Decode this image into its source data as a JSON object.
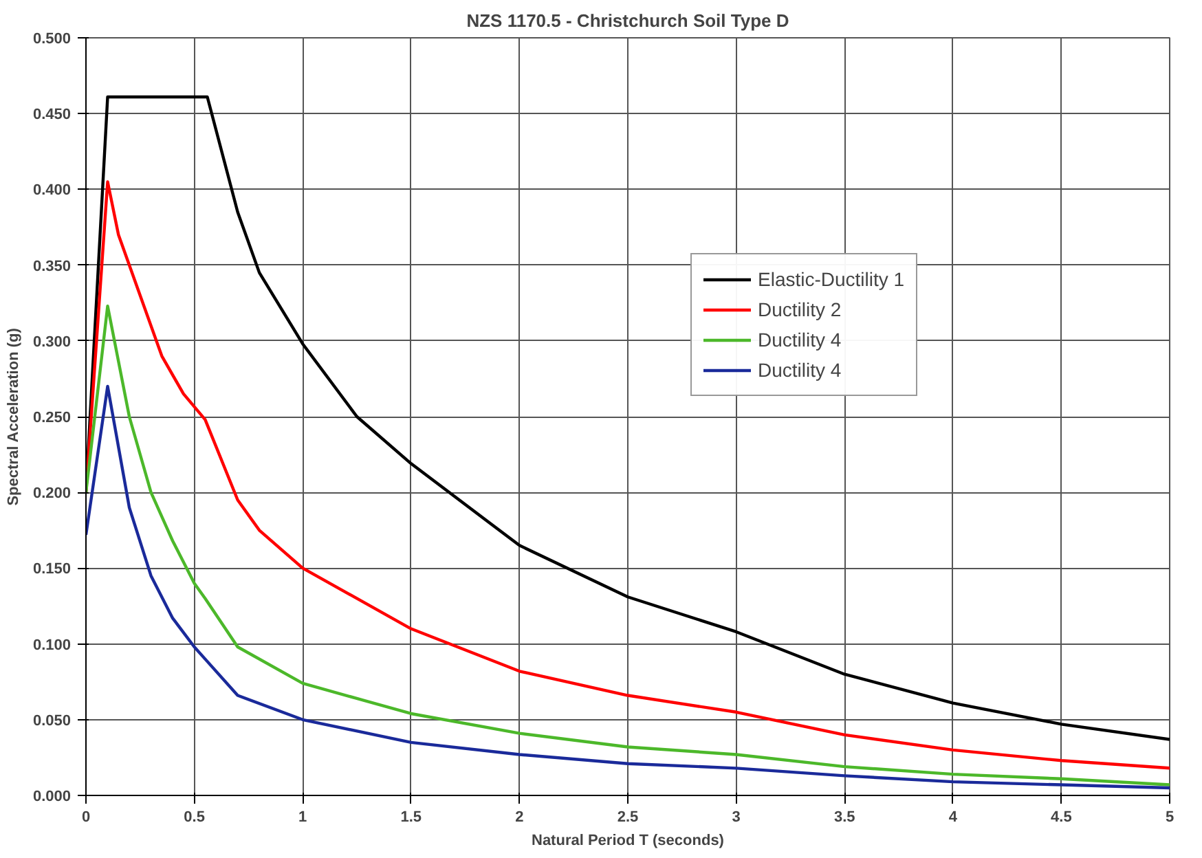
{
  "chart_data": {
    "type": "line",
    "title": "NZS 1170.5 - Christchurch Soil Type D",
    "xlabel": "Natural Period T (seconds)",
    "ylabel": "Spectral Acceleration (g)",
    "xlim": [
      0,
      5
    ],
    "ylim": [
      0,
      0.5
    ],
    "xticks": [
      0,
      0.5,
      1,
      1.5,
      2,
      2.5,
      3,
      3.5,
      4,
      4.5,
      5
    ],
    "yticks": [
      {
        "value": 0,
        "label": "0.000"
      },
      {
        "value": 0.05,
        "label": "0.050"
      },
      {
        "value": 0.1,
        "label": "0.100"
      },
      {
        "value": 0.15,
        "label": "0.150"
      },
      {
        "value": 0.2,
        "label": "0.200"
      },
      {
        "value": 0.25,
        "label": "0.250"
      },
      {
        "value": 0.3,
        "label": "0.300"
      },
      {
        "value": 0.35,
        "label": "0.350"
      },
      {
        "value": 0.4,
        "label": "0.400"
      },
      {
        "value": 0.45,
        "label": "0.450"
      },
      {
        "value": 0.5,
        "label": "0.500"
      }
    ],
    "grid": true,
    "legend": "top right",
    "marker": "none",
    "line_style": "solid",
    "series": [
      {
        "name": "Elastic-Ductility 1",
        "color": "#000000",
        "x": [
          0,
          0.1,
          0.56,
          0.7,
          0.8,
          1,
          1.25,
          1.5,
          2,
          2.5,
          3,
          3.5,
          4,
          4.5,
          5
        ],
        "values": [
          0.2,
          0.461,
          0.461,
          0.385,
          0.345,
          0.298,
          0.25,
          0.219,
          0.165,
          0.131,
          0.108,
          0.08,
          0.061,
          0.047,
          0.037
        ]
      },
      {
        "name": "Ductility 2",
        "color": "#ff0000",
        "x": [
          0,
          0.1,
          0.15,
          0.25,
          0.35,
          0.45,
          0.55,
          0.7,
          0.8,
          1,
          1.5,
          2,
          2.5,
          3,
          3.5,
          4,
          4.5,
          5
        ],
        "values": [
          0.2,
          0.405,
          0.37,
          0.33,
          0.29,
          0.265,
          0.248,
          0.195,
          0.175,
          0.15,
          0.11,
          0.082,
          0.066,
          0.055,
          0.04,
          0.03,
          0.023,
          0.018
        ]
      },
      {
        "name": "Ductility 4",
        "color": "#4cb82a",
        "x": [
          0,
          0.1,
          0.2,
          0.3,
          0.4,
          0.5,
          0.55,
          0.7,
          1,
          1.5,
          2,
          2.5,
          3,
          3.5,
          4,
          4.5,
          5
        ],
        "values": [
          0.2,
          0.323,
          0.25,
          0.2,
          0.168,
          0.14,
          0.13,
          0.098,
          0.074,
          0.054,
          0.041,
          0.032,
          0.027,
          0.019,
          0.014,
          0.011,
          0.007
        ]
      },
      {
        "name": "Ductility 4",
        "color": "#1a2a9a",
        "x": [
          0,
          0.1,
          0.2,
          0.3,
          0.4,
          0.5,
          0.55,
          0.7,
          1,
          1.5,
          2,
          2.5,
          3,
          3.5,
          4,
          4.5,
          5
        ],
        "values": [
          0.172,
          0.27,
          0.19,
          0.145,
          0.117,
          0.098,
          0.09,
          0.066,
          0.05,
          0.035,
          0.027,
          0.021,
          0.018,
          0.013,
          0.009,
          0.007,
          0.005
        ]
      }
    ]
  }
}
